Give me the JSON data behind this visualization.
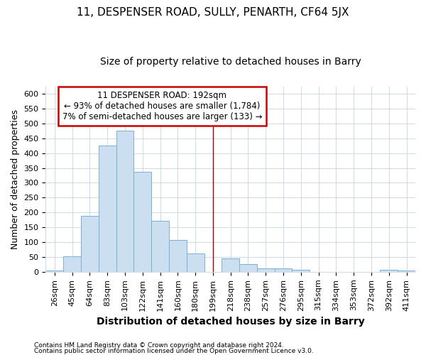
{
  "title": "11, DESPENSER ROAD, SULLY, PENARTH, CF64 5JX",
  "subtitle": "Size of property relative to detached houses in Barry",
  "xlabel": "Distribution of detached houses by size in Barry",
  "ylabel": "Number of detached properties",
  "categories": [
    "26sqm",
    "45sqm",
    "64sqm",
    "83sqm",
    "103sqm",
    "122sqm",
    "141sqm",
    "160sqm",
    "180sqm",
    "199sqm",
    "218sqm",
    "238sqm",
    "257sqm",
    "276sqm",
    "295sqm",
    "315sqm",
    "334sqm",
    "353sqm",
    "372sqm",
    "392sqm",
    "411sqm"
  ],
  "values": [
    5,
    52,
    188,
    425,
    475,
    338,
    173,
    107,
    62,
    0,
    46,
    25,
    11,
    11,
    8,
    0,
    0,
    0,
    0,
    7,
    4
  ],
  "bar_color": "#ccdff0",
  "bar_edge_color": "#7ab0d4",
  "vline_x": 9,
  "vline_color": "#aa0000",
  "annotation_title": "11 DESPENSER ROAD: 192sqm",
  "annotation_line1": "← 93% of detached houses are smaller (1,784)",
  "annotation_line2": "7% of semi-detached houses are larger (133) →",
  "annotation_box_facecolor": "#ffffff",
  "annotation_box_edgecolor": "#cc0000",
  "ylim": [
    0,
    625
  ],
  "yticks": [
    0,
    50,
    100,
    150,
    200,
    250,
    300,
    350,
    400,
    450,
    500,
    550,
    600
  ],
  "footer1": "Contains HM Land Registry data © Crown copyright and database right 2024.",
  "footer2": "Contains public sector information licensed under the Open Government Licence v3.0.",
  "bg_color": "#ffffff",
  "plot_bg_color": "#ffffff",
  "grid_color": "#d0dce8",
  "title_fontsize": 11,
  "subtitle_fontsize": 10,
  "xlabel_fontsize": 10,
  "ylabel_fontsize": 9,
  "tick_fontsize": 8
}
